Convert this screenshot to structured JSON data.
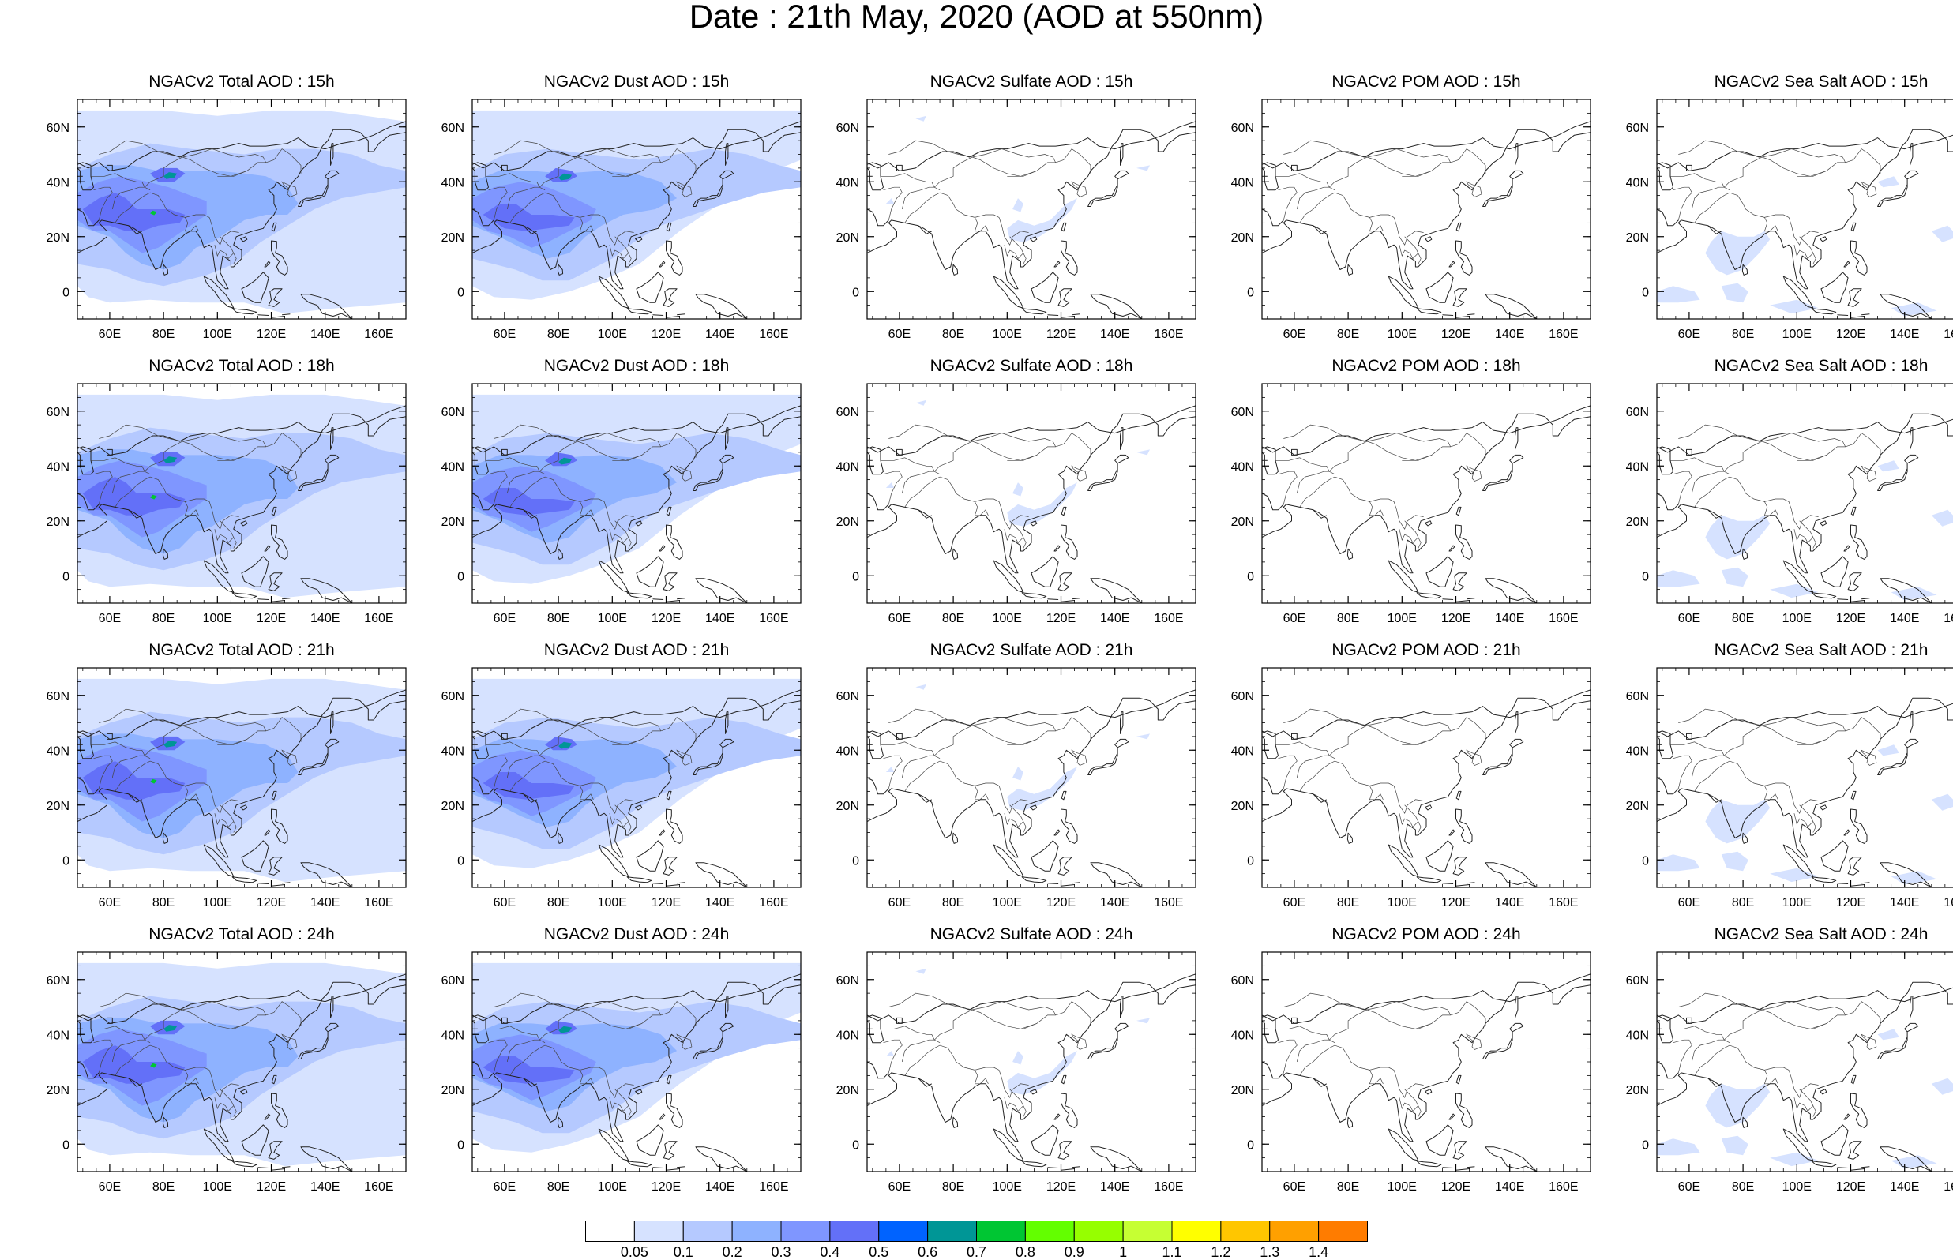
{
  "page": {
    "title": "Date : 21th May, 2020 (AOD at 550nm)"
  },
  "panels": [
    [
      "NGACv2 Total AOD : 15h",
      "NGACv2 Dust AOD : 15h",
      "NGACv2 Sulfate AOD : 15h",
      "NGACv2 POM AOD : 15h",
      "NGACv2 Sea Salt AOD : 15h"
    ],
    [
      "NGACv2 Total AOD : 18h",
      "NGACv2 Dust AOD : 18h",
      "NGACv2 Sulfate AOD : 18h",
      "NGACv2 POM AOD : 18h",
      "NGACv2 Sea Salt AOD : 18h"
    ],
    [
      "NGACv2 Total AOD : 21h",
      "NGACv2 Dust AOD : 21h",
      "NGACv2 Sulfate AOD : 21h",
      "NGACv2 POM AOD : 21h",
      "NGACv2 Sea Salt AOD : 21h"
    ],
    [
      "NGACv2 Total AOD : 24h",
      "NGACv2 Dust AOD : 24h",
      "NGACv2 Sulfate AOD : 24h",
      "NGACv2 POM AOD : 24h",
      "NGACv2 Sea Salt  AOD : 24h"
    ]
  ],
  "map": {
    "lon_range": [
      48,
      170
    ],
    "lat_range": [
      -10,
      70
    ],
    "x_tick_labels": [
      "60E",
      "80E",
      "100E",
      "120E",
      "140E",
      "160E"
    ],
    "x_tick_values": [
      60,
      80,
      100,
      120,
      140,
      160
    ],
    "y_tick_labels": [
      "60N",
      "40N",
      "20N",
      "0"
    ],
    "y_tick_values": [
      60,
      40,
      20,
      0
    ]
  },
  "colorbar": {
    "labels": [
      "0.05",
      "0.1",
      "0.2",
      "0.3",
      "0.4",
      "0.5",
      "0.6",
      "0.7",
      "0.8",
      "0.9",
      "1",
      "1.1",
      "1.2",
      "1.3",
      "1.4"
    ],
    "colors": [
      "#ffffff",
      "#d6e2ff",
      "#b5c9ff",
      "#8eb2ff",
      "#7f96ff",
      "#6370f8",
      "#0063ff",
      "#009696",
      "#00c633",
      "#63ff00",
      "#96ff00",
      "#c6ff33",
      "#ffff00",
      "#ffc600",
      "#ffa000",
      "#ff7c00",
      "#ff1900"
    ]
  }
}
